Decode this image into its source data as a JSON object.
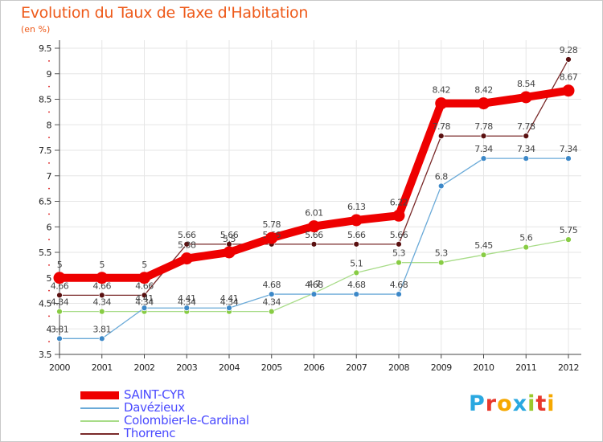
{
  "title": "Evolution du Taux de Taxe d'Habitation",
  "subtitle": "(en %)",
  "logo": {
    "letters": [
      "P",
      "r",
      "o",
      "x",
      "i",
      "t",
      "i"
    ],
    "colors": [
      "#2aa8e0",
      "#e8382c",
      "#f6a800",
      "#2aa8e0",
      "#9bc82c",
      "#e8382c",
      "#f6a800"
    ]
  },
  "chart_data": {
    "type": "line",
    "x": [
      "2000",
      "2001",
      "2002",
      "2003",
      "2004",
      "2005",
      "2006",
      "2007",
      "2008",
      "2009",
      "2010",
      "2011",
      "2012"
    ],
    "ylim": [
      3.5,
      9.5
    ],
    "yticks": [
      "3.5",
      "4",
      "4.5",
      "5",
      "5.5",
      "6",
      "6.5",
      "7",
      "7.5",
      "8",
      "8.5",
      "9",
      "9.5"
    ],
    "grid": true,
    "series": [
      {
        "name": "Thorrenc",
        "color": "#7a2a2a",
        "dot": "#5a1010",
        "values": [
          4.66,
          4.66,
          4.66,
          5.66,
          5.66,
          5.66,
          5.66,
          5.66,
          5.66,
          7.78,
          7.78,
          7.78,
          9.28
        ],
        "labels": [
          "4.66",
          "4.66",
          "4.66",
          "5.66",
          "5.66",
          "5.66",
          "5.66",
          "5.66",
          "5.66",
          "7.78",
          "7.78",
          "7.78",
          "9.28"
        ]
      },
      {
        "name": "Colombier-le-Cardinal",
        "color": "#a8dc88",
        "dot": "#88cc44",
        "values": [
          4.34,
          4.34,
          4.34,
          4.34,
          4.34,
          4.34,
          4.7,
          5.1,
          5.3,
          5.3,
          5.45,
          5.6,
          5.75
        ],
        "labels": [
          "4.34",
          "4.34",
          "4.34",
          "4.34",
          "4.34",
          "4.34",
          "4.7",
          "5.1",
          "5.3",
          "5.3",
          "5.45",
          "5.6",
          "5.75"
        ]
      },
      {
        "name": "Davézieux",
        "color": "#6aaad8",
        "dot": "#3c88c8",
        "values": [
          3.81,
          3.81,
          4.41,
          4.41,
          4.41,
          4.68,
          4.68,
          4.68,
          4.68,
          6.8,
          7.34,
          7.34,
          7.34
        ],
        "labels": [
          "3.81",
          "3.81",
          "4.41",
          "4.41",
          "4.41",
          "4.68",
          "4.68",
          "4.68",
          "4.68",
          "6.8",
          "7.34",
          "7.34",
          "7.34"
        ]
      },
      {
        "name": "SAINT-CYR",
        "color": "#ee0000",
        "dot": "#ee0000",
        "values": [
          5,
          5,
          5,
          5.38,
          5.5,
          5.78,
          6.01,
          6.13,
          6.22,
          8.42,
          8.42,
          8.54,
          8.67
        ],
        "labels": [
          "5",
          "5",
          "5",
          "5.38",
          "5.5",
          "5.78",
          "6.01",
          "6.13",
          "6.22",
          "8.42",
          "8.42",
          "8.54",
          "8.67"
        ]
      }
    ]
  },
  "legend": [
    {
      "name": "SAINT-CYR",
      "color": "#ee0000"
    },
    {
      "name": "Davézieux",
      "color": "#6aaad8"
    },
    {
      "name": "Colombier-le-Cardinal",
      "color": "#a8dc88"
    },
    {
      "name": "Thorrenc",
      "color": "#7a2a2a"
    }
  ]
}
